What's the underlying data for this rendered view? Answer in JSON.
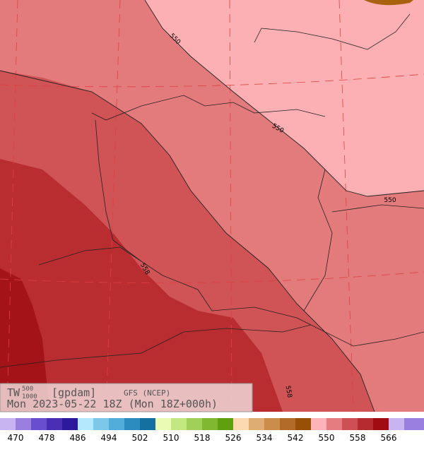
{
  "header": {
    "field": "TW",
    "level_top": "500",
    "level_bottom": "1000",
    "unit": "[gpdam]",
    "model": "GFS (NCEP)",
    "valid": "Mon 2023-05-22 18Z (Mon 18Z+000h)"
  },
  "contour_labels": [
    "550",
    "550",
    "550",
    "558",
    "558"
  ],
  "colorbar": {
    "labels": [
      470,
      478,
      486,
      494,
      502,
      510,
      518,
      526,
      534,
      542,
      550,
      558,
      566
    ],
    "colors": [
      "#c8b4f0",
      "#9a7ee0",
      "#6a4fcc",
      "#4a2fb4",
      "#2c1a9c",
      "#b4e8fc",
      "#7cc8e8",
      "#50acd8",
      "#2c8cc0",
      "#1470a0",
      "#e8fcb4",
      "#c4e880",
      "#a0d058",
      "#80b830",
      "#60a010",
      "#fcd8b0",
      "#e0ac74",
      "#cc8c4c",
      "#b06c28",
      "#985008",
      "#fcb4b8",
      "#e47c80",
      "#cc5054",
      "#b42c30",
      "#a00c10",
      "#c8b4f0",
      "#9a7ee0"
    ]
  }
}
